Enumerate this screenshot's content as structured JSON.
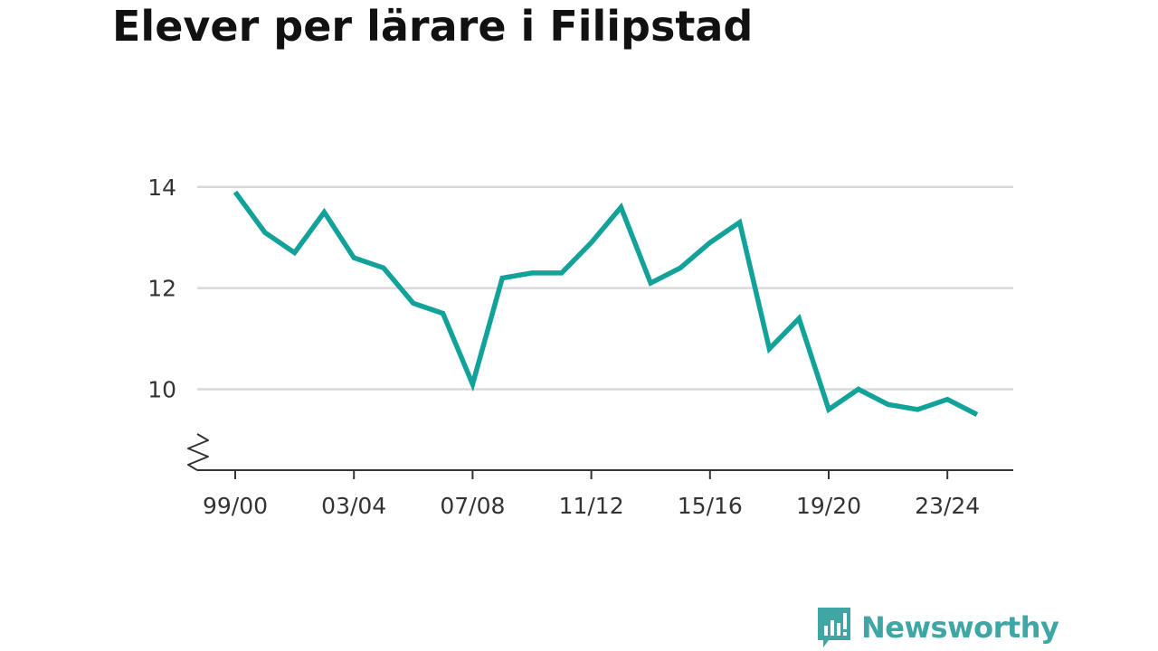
{
  "title": "Elever per lärare i Filipstad",
  "brand": {
    "name": "Newsworthy",
    "color": "#3fa6a6",
    "icon": "bar-chart-speech-bubble-icon"
  },
  "chart_data": {
    "type": "line",
    "title": "Elever per lärare i Filipstad",
    "xlabel": "",
    "ylabel": "",
    "x": [
      "99/00",
      "00/01",
      "01/02",
      "02/03",
      "03/04",
      "04/05",
      "05/06",
      "06/07",
      "07/08",
      "08/09",
      "09/10",
      "10/11",
      "11/12",
      "12/13",
      "13/14",
      "14/15",
      "15/16",
      "16/17",
      "17/18",
      "18/19",
      "19/20",
      "20/21",
      "21/22",
      "22/23",
      "23/24",
      "24/25"
    ],
    "x_tick_labels": [
      "99/00",
      "03/04",
      "07/08",
      "11/12",
      "15/16",
      "19/20",
      "23/24"
    ],
    "y_ticks": [
      10,
      12,
      14
    ],
    "ylim": [
      8.4,
      14.3
    ],
    "y_axis_break": true,
    "grid": true,
    "color": "#13a29a",
    "series": [
      {
        "values": [
          13.9,
          13.1,
          12.7,
          13.5,
          12.6,
          12.4,
          11.7,
          11.5,
          10.1,
          12.2,
          12.3,
          12.3,
          12.9,
          13.6,
          12.1,
          12.4,
          12.9,
          13.3,
          10.8,
          11.4,
          9.6,
          10.0,
          9.7,
          9.6,
          9.8,
          9.5
        ]
      }
    ]
  }
}
